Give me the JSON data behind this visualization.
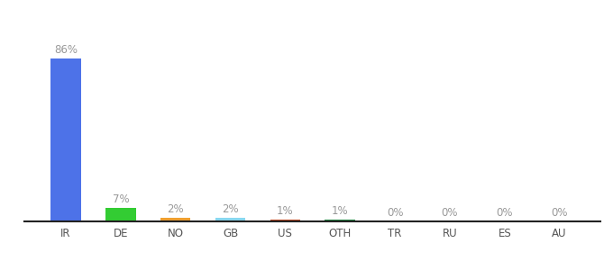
{
  "categories": [
    "IR",
    "DE",
    "NO",
    "GB",
    "US",
    "OTH",
    "TR",
    "RU",
    "ES",
    "AU"
  ],
  "values": [
    86,
    7,
    2,
    2,
    1,
    1,
    0,
    0,
    0,
    0
  ],
  "labels": [
    "86%",
    "7%",
    "2%",
    "2%",
    "1%",
    "1%",
    "0%",
    "0%",
    "0%",
    "0%"
  ],
  "bar_colors": [
    "#4d72e8",
    "#33cc33",
    "#f0a030",
    "#88d8f0",
    "#c04820",
    "#228844",
    "#aaaaaa",
    "#aaaaaa",
    "#aaaaaa",
    "#aaaaaa"
  ],
  "background_color": "#ffffff",
  "label_color": "#999999",
  "tick_color": "#555555",
  "ylim": [
    0,
    100
  ],
  "bar_width": 0.55,
  "figsize": [
    6.8,
    3.0
  ],
  "dpi": 100
}
